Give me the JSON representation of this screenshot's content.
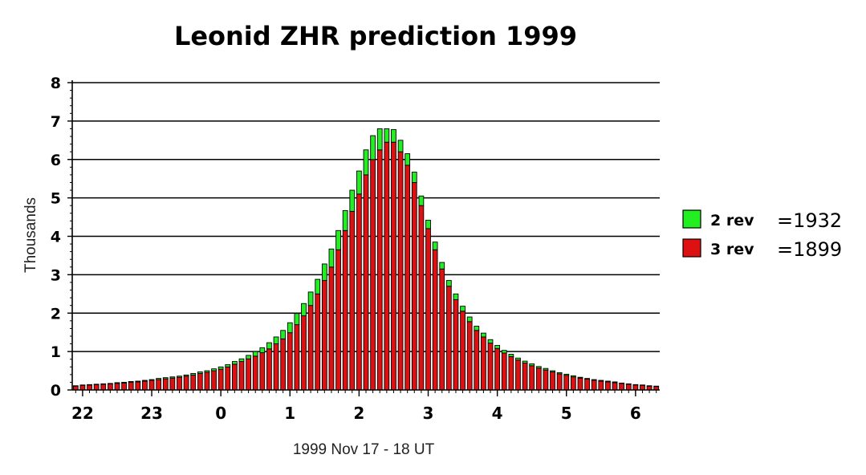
{
  "chart_data": {
    "type": "bar",
    "title": "Leonid ZHR prediction 1999",
    "xlabel": "1999 Nov  17 - 18 UT",
    "ylabel": "Thousands",
    "ylim": [
      0,
      8
    ],
    "xlim": [
      21.85,
      30.35
    ],
    "yticks": [
      "0",
      "1",
      "2",
      "3",
      "4",
      "5",
      "6",
      "7",
      "8"
    ],
    "xtick_values": [
      22,
      23,
      24,
      25,
      26,
      27,
      28,
      29,
      30
    ],
    "xtick_labels": [
      "22",
      "23",
      "0",
      "1",
      "2",
      "3",
      "4",
      "5",
      "6"
    ],
    "grid": "horizontal",
    "legend_position": "right",
    "stacked": true,
    "x": [
      21.9,
      22.0,
      22.1,
      22.2,
      22.3,
      22.4,
      22.5,
      22.6,
      22.7,
      22.8,
      22.9,
      23.0,
      23.1,
      23.2,
      23.3,
      23.4,
      23.5,
      23.6,
      23.7,
      23.8,
      23.9,
      24.0,
      24.1,
      24.2,
      24.3,
      24.4,
      24.5,
      24.6,
      24.7,
      24.8,
      24.9,
      25.0,
      25.1,
      25.2,
      25.3,
      25.4,
      25.5,
      25.6,
      25.7,
      25.8,
      25.9,
      26.0,
      26.1,
      26.2,
      26.3,
      26.4,
      26.5,
      26.6,
      26.7,
      26.8,
      26.9,
      27.0,
      27.1,
      27.2,
      27.3,
      27.4,
      27.5,
      27.6,
      27.7,
      27.8,
      27.9,
      28.0,
      28.1,
      28.2,
      28.3,
      28.4,
      28.5,
      28.6,
      28.7,
      28.8,
      28.9,
      29.0,
      29.1,
      29.2,
      29.3,
      29.4,
      29.5,
      29.6,
      29.7,
      29.8,
      29.9,
      30.0,
      30.1,
      30.2,
      30.3
    ],
    "series": [
      {
        "name": "3 rev",
        "count": "=1899",
        "color": "#dd1111",
        "values": [
          0.1,
          0.12,
          0.13,
          0.14,
          0.15,
          0.16,
          0.17,
          0.18,
          0.2,
          0.21,
          0.23,
          0.25,
          0.27,
          0.29,
          0.31,
          0.33,
          0.36,
          0.39,
          0.43,
          0.46,
          0.5,
          0.54,
          0.6,
          0.67,
          0.74,
          0.81,
          0.88,
          0.97,
          1.07,
          1.2,
          1.33,
          1.49,
          1.7,
          1.93,
          2.2,
          2.5,
          2.85,
          3.2,
          3.65,
          4.15,
          4.65,
          5.1,
          5.6,
          6.0,
          6.25,
          6.45,
          6.45,
          6.2,
          5.85,
          5.4,
          4.8,
          4.2,
          3.65,
          3.15,
          2.7,
          2.35,
          2.05,
          1.78,
          1.55,
          1.38,
          1.22,
          1.08,
          0.96,
          0.87,
          0.78,
          0.7,
          0.63,
          0.57,
          0.52,
          0.47,
          0.42,
          0.38,
          0.34,
          0.31,
          0.28,
          0.25,
          0.23,
          0.21,
          0.19,
          0.17,
          0.15,
          0.13,
          0.12,
          0.1,
          0.09
        ]
      },
      {
        "name": "2 rev",
        "count": "=1932",
        "color": "#22ee22",
        "values": [
          0.01,
          0.01,
          0.01,
          0.01,
          0.01,
          0.01,
          0.02,
          0.02,
          0.02,
          0.02,
          0.02,
          0.02,
          0.03,
          0.03,
          0.03,
          0.03,
          0.03,
          0.04,
          0.04,
          0.04,
          0.05,
          0.06,
          0.06,
          0.07,
          0.07,
          0.09,
          0.12,
          0.13,
          0.16,
          0.18,
          0.22,
          0.26,
          0.29,
          0.32,
          0.35,
          0.38,
          0.43,
          0.47,
          0.5,
          0.52,
          0.55,
          0.6,
          0.65,
          0.62,
          0.55,
          0.35,
          0.33,
          0.3,
          0.3,
          0.27,
          0.25,
          0.22,
          0.2,
          0.17,
          0.15,
          0.15,
          0.13,
          0.12,
          0.11,
          0.1,
          0.09,
          0.08,
          0.07,
          0.06,
          0.05,
          0.05,
          0.05,
          0.04,
          0.04,
          0.03,
          0.03,
          0.03,
          0.03,
          0.02,
          0.02,
          0.02,
          0.02,
          0.02,
          0.02,
          0.01,
          0.01,
          0.01,
          0.01,
          0.01,
          0.01
        ]
      }
    ]
  }
}
